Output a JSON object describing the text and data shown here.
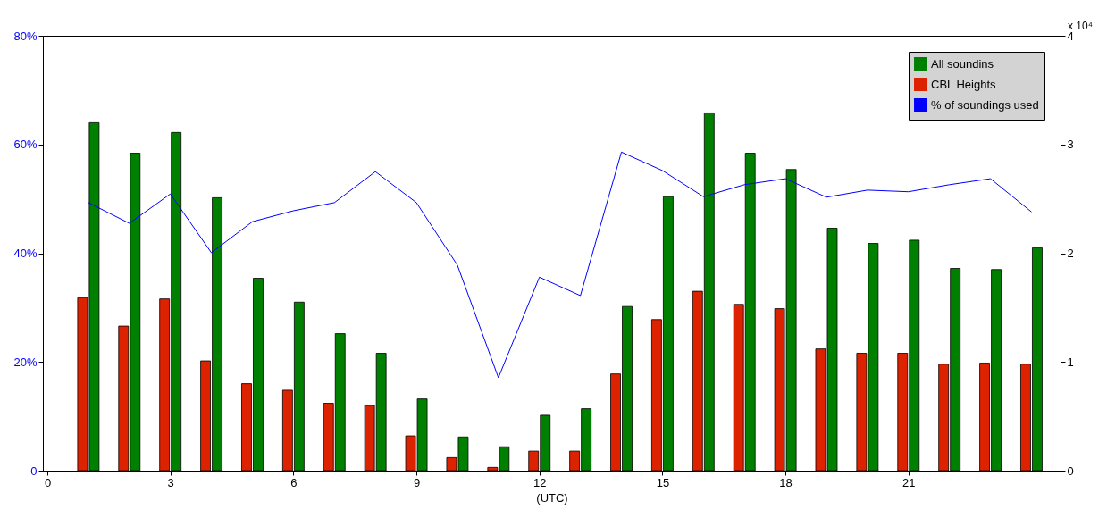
{
  "chart_data": {
    "type": "bar",
    "xlabel": "(UTC)",
    "x": [
      1,
      2,
      3,
      4,
      5,
      6,
      7,
      8,
      9,
      10,
      11,
      12,
      13,
      14,
      15,
      16,
      17,
      18,
      19,
      20,
      21,
      22,
      23,
      24
    ],
    "xlim": [
      0,
      24.6
    ],
    "xticks": [
      0,
      3,
      6,
      9,
      12,
      15,
      18,
      21
    ],
    "ylim": [
      0,
      80
    ],
    "yticks": [
      {
        "value": 0,
        "label": "0"
      },
      {
        "value": 20,
        "label": "20%"
      },
      {
        "value": 40,
        "label": "40%"
      },
      {
        "value": 60,
        "label": "60%"
      },
      {
        "value": 80,
        "label": "80%"
      }
    ],
    "y2lim": [
      0,
      4
    ],
    "y2ticks": [
      0,
      1,
      2,
      3,
      4
    ],
    "annotations": [
      "x 10⁴"
    ],
    "legend": "top right",
    "grid": false,
    "series": [
      {
        "name": "All soundins",
        "axis": "y2",
        "color": "#008000",
        "values": [
          3.2,
          2.92,
          3.11,
          2.51,
          1.77,
          1.55,
          1.26,
          1.08,
          0.66,
          0.31,
          0.22,
          0.51,
          0.57,
          1.51,
          2.52,
          3.29,
          2.92,
          2.77,
          2.23,
          2.09,
          2.12,
          1.86,
          1.85,
          2.05
        ]
      },
      {
        "name": "CBL Heights",
        "axis": "y2",
        "color": "#dd2200",
        "values": [
          1.59,
          1.33,
          1.58,
          1.01,
          0.8,
          0.74,
          0.62,
          0.6,
          0.32,
          0.12,
          0.03,
          0.18,
          0.18,
          0.89,
          1.39,
          1.65,
          1.53,
          1.49,
          1.12,
          1.08,
          1.08,
          0.98,
          0.99,
          0.98
        ]
      },
      {
        "name": "% of soundings used",
        "type": "line",
        "color": "#0000ff",
        "values": [
          49.3,
          45.5,
          50.9,
          40.1,
          45.8,
          47.8,
          49.3,
          55.0,
          49.3,
          37.8,
          17.1,
          35.6,
          32.2,
          58.6,
          55.2,
          50.4,
          52.6,
          53.7,
          50.3,
          51.6,
          51.3,
          52.6,
          53.7,
          47.6
        ]
      }
    ]
  }
}
